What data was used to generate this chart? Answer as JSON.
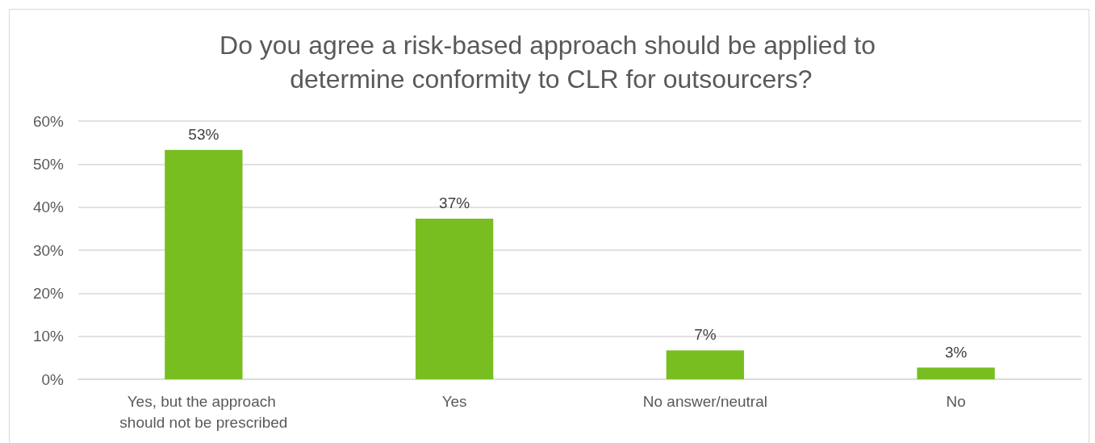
{
  "chart_data": {
    "type": "bar",
    "title": "Do you agree a risk-based approach should be applied to determine conformity to CLR for outsourcers?",
    "categories": [
      "Yes, but the approach should not be prescribed",
      "Yes",
      "No answer/neutral",
      "No"
    ],
    "values": [
      53.3,
      37.3,
      6.7,
      2.7
    ],
    "value_labels": [
      "53%",
      "37%",
      "7%",
      "3%"
    ],
    "color": "#78be20",
    "ylim": [
      0,
      60
    ],
    "yticks": [
      {
        "value": 0,
        "label": "0%"
      },
      {
        "value": 10,
        "label": "10%"
      },
      {
        "value": 20,
        "label": "20%"
      },
      {
        "value": 30,
        "label": "30%"
      },
      {
        "value": 40,
        "label": "40%"
      },
      {
        "value": 50,
        "label": "50%"
      },
      {
        "value": 60,
        "label": "60%"
      }
    ],
    "grid": "y"
  }
}
